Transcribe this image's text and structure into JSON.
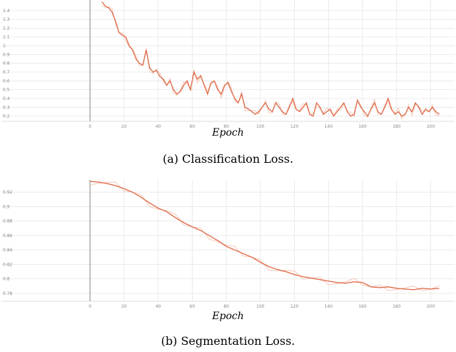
{
  "chart_data": [
    {
      "type": "line",
      "xlabel": "Epoch",
      "caption": "(a) Classification Loss.",
      "xlim": [
        -52,
        214
      ],
      "ylim": [
        0.14,
        1.52
      ],
      "x_ticks": [
        0,
        20,
        40,
        60,
        80,
        100,
        120,
        140,
        160,
        180,
        200
      ],
      "y_ticks": [
        0.2,
        0.3,
        0.4,
        0.5,
        0.6,
        0.7,
        0.8,
        0.9,
        1,
        1.1,
        1.2,
        1.3,
        1.4
      ],
      "y_tick_labels": [
        "0.2",
        "0.3",
        "0.4",
        "0.5",
        "0.6",
        "0.7",
        "0.8",
        "0.9",
        "1",
        "1.1",
        "1.2",
        "1.3",
        "1.4"
      ],
      "grid": true,
      "colors": {
        "smoothed": "#e07050",
        "raw": "#f5c8b8",
        "grid": "#e6e6e6",
        "axis": "#999999"
      },
      "series": [
        {
          "x": [
            7,
            9,
            11,
            13,
            15,
            17,
            19,
            21,
            23,
            25,
            27,
            29,
            31,
            33,
            35,
            37,
            39,
            41,
            43,
            45,
            47,
            49,
            51,
            53,
            55,
            57,
            59,
            61,
            63,
            65,
            67,
            69,
            71,
            73,
            75,
            77,
            79,
            81,
            83,
            85,
            87,
            89,
            91,
            93,
            95,
            97,
            99,
            101,
            103,
            105,
            107,
            109,
            111,
            113,
            115,
            117,
            119,
            121,
            123,
            125,
            127,
            129,
            131,
            133,
            135,
            137,
            139,
            141,
            143,
            145,
            147,
            149,
            151,
            153,
            155,
            157,
            159,
            161,
            163,
            165,
            167,
            169,
            171,
            173,
            175,
            177,
            179,
            181,
            183,
            185,
            187,
            189,
            191,
            193,
            195,
            197,
            199,
            201,
            203,
            205
          ],
          "values": [
            1.5,
            1.45,
            1.43,
            1.38,
            1.28,
            1.15,
            1.12,
            1.1,
            1.0,
            0.95,
            0.85,
            0.8,
            0.78,
            0.95,
            0.75,
            0.7,
            0.72,
            0.65,
            0.62,
            0.55,
            0.6,
            0.5,
            0.45,
            0.48,
            0.55,
            0.6,
            0.5,
            0.7,
            0.62,
            0.66,
            0.55,
            0.45,
            0.58,
            0.6,
            0.5,
            0.45,
            0.55,
            0.58,
            0.48,
            0.4,
            0.35,
            0.45,
            0.3,
            0.28,
            0.25,
            0.22,
            0.25,
            0.3,
            0.35,
            0.28,
            0.25,
            0.35,
            0.3,
            0.25,
            0.22,
            0.3,
            0.4,
            0.28,
            0.25,
            0.3,
            0.35,
            0.22,
            0.2,
            0.35,
            0.3,
            0.22,
            0.25,
            0.28,
            0.2,
            0.25,
            0.3,
            0.35,
            0.25,
            0.2,
            0.22,
            0.38,
            0.3,
            0.25,
            0.2,
            0.28,
            0.35,
            0.25,
            0.22,
            0.3,
            0.4,
            0.28,
            0.22,
            0.25,
            0.2,
            0.22,
            0.3,
            0.25,
            0.35,
            0.3,
            0.22,
            0.28,
            0.25,
            0.3,
            0.25,
            0.22
          ]
        }
      ]
    },
    {
      "type": "line",
      "xlabel": "Epoch",
      "caption": "(b) Segmentation Loss.",
      "xlim": [
        -52,
        214
      ],
      "ylim": [
        0.769,
        0.937
      ],
      "x_ticks": [
        0,
        20,
        40,
        60,
        80,
        100,
        120,
        140,
        160,
        180,
        200
      ],
      "y_ticks": [
        0.78,
        0.8,
        0.82,
        0.84,
        0.86,
        0.88,
        0.9,
        0.92
      ],
      "y_tick_labels": [
        "0.78",
        "0.8",
        "0.82",
        "0.84",
        "0.86",
        "0.88",
        "0.9",
        "0.92"
      ],
      "grid": true,
      "colors": {
        "smoothed": "#e07050",
        "raw": "#f5c8b8",
        "grid": "#e6e6e6",
        "axis": "#999999"
      },
      "series": [
        {
          "x": [
            0,
            5,
            10,
            15,
            20,
            25,
            30,
            35,
            40,
            45,
            50,
            55,
            60,
            65,
            70,
            75,
            80,
            85,
            90,
            95,
            100,
            105,
            110,
            115,
            120,
            125,
            130,
            135,
            140,
            145,
            150,
            155,
            160,
            165,
            170,
            175,
            180,
            185,
            190,
            195,
            200,
            205
          ],
          "values": [
            0.935,
            0.934,
            0.932,
            0.929,
            0.925,
            0.92,
            0.913,
            0.905,
            0.898,
            0.893,
            0.885,
            0.878,
            0.872,
            0.867,
            0.86,
            0.853,
            0.845,
            0.84,
            0.835,
            0.83,
            0.823,
            0.817,
            0.813,
            0.81,
            0.806,
            0.803,
            0.801,
            0.799,
            0.797,
            0.795,
            0.794,
            0.796,
            0.795,
            0.789,
            0.788,
            0.789,
            0.787,
            0.786,
            0.785,
            0.787,
            0.786,
            0.787
          ]
        }
      ]
    }
  ]
}
